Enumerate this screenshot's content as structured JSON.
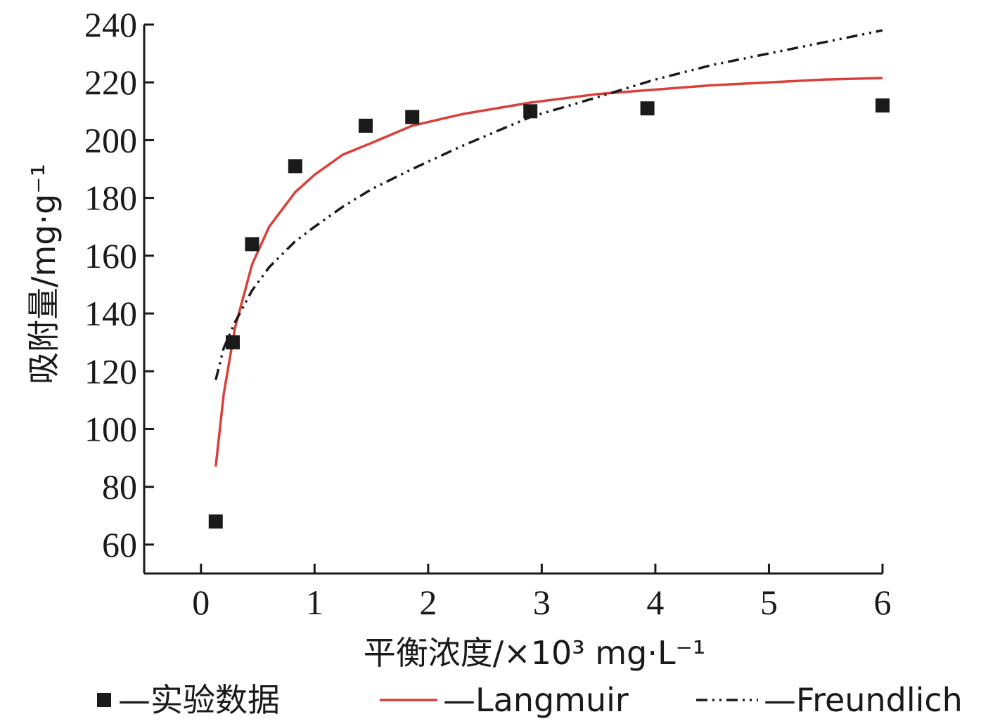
{
  "chart_data": {
    "type": "scatter",
    "xlabel": "平衡浓度/×10³ mg·L⁻¹",
    "ylabel": "吸附量/mg·g⁻¹",
    "xlim": [
      -0.5,
      6
    ],
    "ylim": [
      50,
      240
    ],
    "xticks": [
      "0",
      "1",
      "2",
      "3",
      "4",
      "5",
      "6"
    ],
    "yticks": [
      "60",
      "80",
      "100",
      "120",
      "140",
      "160",
      "180",
      "200",
      "220",
      "240"
    ],
    "grid": false,
    "legend_position": "bottom",
    "series": [
      {
        "name": "—实验数据",
        "kind": "points",
        "color": "#1a1a1a",
        "marker": "square",
        "x": [
          0.13,
          0.28,
          0.45,
          0.83,
          1.45,
          1.86,
          2.9,
          3.93,
          6.0
        ],
        "y": [
          68,
          130,
          164,
          191,
          205,
          208,
          210,
          211,
          212
        ]
      },
      {
        "name": "—Langmuir",
        "kind": "line",
        "color": "#d9403a",
        "dash": "solid",
        "x": [
          0.13,
          0.2,
          0.3,
          0.45,
          0.6,
          0.83,
          1.0,
          1.25,
          1.5,
          1.86,
          2.3,
          2.9,
          3.5,
          4.0,
          4.5,
          5.0,
          5.5,
          6.0
        ],
        "y": [
          87,
          112,
          135,
          157,
          170,
          182,
          188,
          195,
          199,
          205,
          209,
          213,
          216,
          217.5,
          219,
          220,
          221,
          221.5
        ]
      },
      {
        "name": "—Freundlich",
        "kind": "line",
        "color": "#1a1a1a",
        "dash": "dashdotdot",
        "x": [
          0.13,
          0.2,
          0.3,
          0.45,
          0.6,
          0.83,
          1.0,
          1.25,
          1.5,
          1.86,
          2.3,
          2.9,
          3.5,
          4.0,
          4.5,
          5.0,
          5.5,
          6.0
        ],
        "y": [
          117,
          128,
          137,
          148,
          156,
          165,
          170,
          177,
          183,
          190,
          198,
          208,
          215,
          221,
          226,
          230,
          234,
          238
        ]
      }
    ]
  }
}
